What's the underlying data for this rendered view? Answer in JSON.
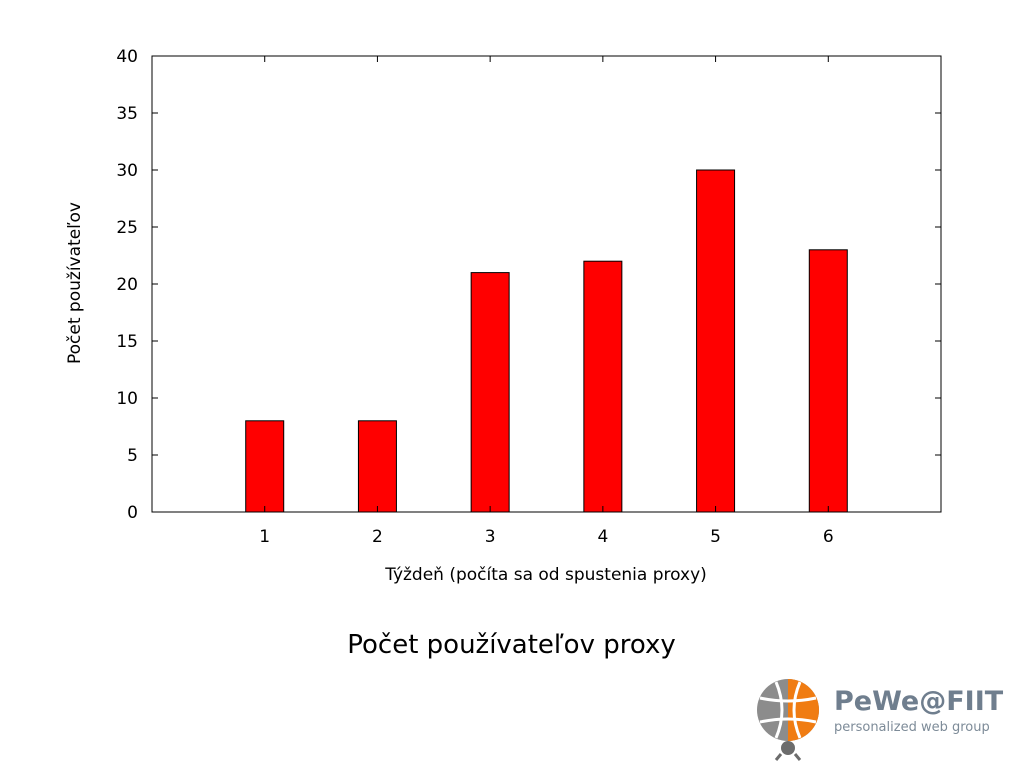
{
  "chart_data": {
    "type": "bar",
    "categories": [
      "1",
      "2",
      "3",
      "4",
      "5",
      "6"
    ],
    "values": [
      8,
      8,
      21,
      22,
      30,
      23
    ],
    "xlabel": "Týždeň (počíta sa od spustenia proxy)",
    "ylabel": "Počet používateľov",
    "ylim": [
      0,
      40
    ],
    "yticks": [
      0,
      5,
      10,
      15,
      20,
      25,
      30,
      35,
      40
    ],
    "xlim": [
      0,
      7
    ],
    "bar_color": "#ff0000",
    "grid": false,
    "legend": "none"
  },
  "caption": "Počet používateľov proxy",
  "logo": {
    "brand": "PeWe@FIIT",
    "tagline": "personalized web group",
    "colors": {
      "globe_gray": "#8c8c8c",
      "globe_orange": "#f07c12",
      "text": "#6f7e8e"
    }
  }
}
